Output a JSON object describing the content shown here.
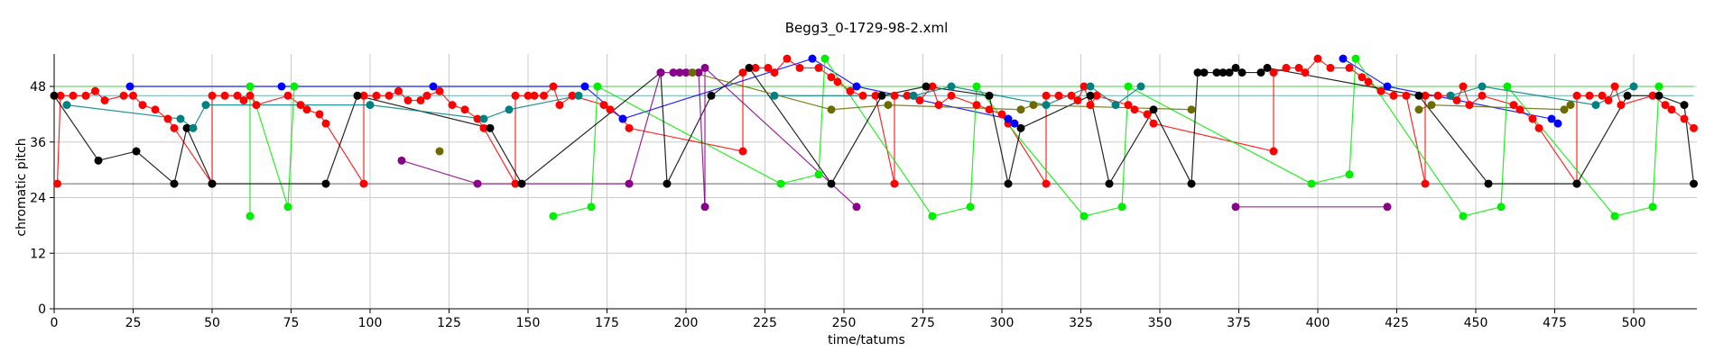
{
  "chart_data": {
    "type": "scatter",
    "title": "Begg3_0-1729-98-2.xml",
    "xlabel": "time/tatums",
    "ylabel": "chromatic pitch",
    "xlim": [
      0,
      520
    ],
    "ylim": [
      0,
      55
    ],
    "xticks": [
      0,
      25,
      50,
      75,
      100,
      125,
      150,
      175,
      200,
      225,
      250,
      275,
      300,
      325,
      350,
      375,
      400,
      425,
      450,
      475,
      500
    ],
    "yticks": [
      0,
      12,
      24,
      36,
      48
    ],
    "grid": true,
    "reference_lines": [
      {
        "name": "black",
        "color": "#000000",
        "y": 27,
        "x": [
          0,
          519
        ]
      },
      {
        "name": "green",
        "color": "#00cc00",
        "y": 48,
        "x": [
          0,
          519
        ]
      },
      {
        "name": "teal",
        "color": "#008080",
        "y": 46,
        "x": [
          0,
          519
        ]
      }
    ],
    "series": [
      {
        "color": "#ff0000",
        "points": [
          [
            1,
            27
          ],
          [
            2,
            46
          ],
          [
            6,
            46
          ],
          [
            10,
            46
          ],
          [
            13,
            47
          ],
          [
            16,
            45
          ],
          [
            22,
            46
          ],
          [
            25,
            46
          ],
          [
            28,
            44
          ],
          [
            32,
            43
          ],
          [
            36,
            41
          ],
          [
            38,
            39
          ],
          [
            50,
            27
          ],
          [
            50,
            46
          ],
          [
            54,
            46
          ],
          [
            58,
            46
          ],
          [
            60,
            45
          ],
          [
            62,
            46
          ],
          [
            64,
            44
          ],
          [
            74,
            46
          ],
          [
            78,
            44
          ],
          [
            80,
            43
          ],
          [
            84,
            42
          ],
          [
            86,
            40
          ],
          [
            98,
            27
          ],
          [
            98,
            46
          ],
          [
            102,
            46
          ],
          [
            106,
            46
          ],
          [
            109,
            47
          ],
          [
            112,
            45
          ],
          [
            116,
            45
          ],
          [
            118,
            46
          ],
          [
            122,
            47
          ],
          [
            126,
            44
          ],
          [
            130,
            43
          ],
          [
            134,
            41
          ],
          [
            136,
            39
          ],
          [
            146,
            27
          ],
          [
            146,
            46
          ],
          [
            150,
            46
          ],
          [
            152,
            46
          ],
          [
            155,
            46
          ],
          [
            158,
            48
          ],
          [
            160,
            44
          ],
          [
            164,
            46
          ],
          [
            174,
            44
          ],
          [
            176,
            43
          ],
          [
            180,
            41
          ],
          [
            182,
            39
          ],
          [
            218,
            34
          ],
          [
            218,
            51
          ],
          [
            222,
            52
          ],
          [
            226,
            52
          ],
          [
            228,
            51
          ],
          [
            232,
            54
          ],
          [
            236,
            52
          ],
          [
            242,
            52
          ],
          [
            246,
            50
          ],
          [
            248,
            49
          ],
          [
            252,
            47
          ],
          [
            256,
            46
          ],
          [
            260,
            46
          ],
          [
            266,
            27
          ],
          [
            266,
            46
          ],
          [
            270,
            46
          ],
          [
            272,
            46
          ],
          [
            274,
            45
          ],
          [
            278,
            48
          ],
          [
            280,
            44
          ],
          [
            284,
            46
          ],
          [
            292,
            44
          ],
          [
            296,
            43
          ],
          [
            300,
            42
          ],
          [
            302,
            40
          ],
          [
            314,
            27
          ],
          [
            314,
            46
          ],
          [
            318,
            46
          ],
          [
            322,
            46
          ],
          [
            324,
            45
          ],
          [
            326,
            48
          ],
          [
            328,
            44
          ],
          [
            330,
            46
          ],
          [
            340,
            44
          ],
          [
            342,
            43
          ],
          [
            346,
            42
          ],
          [
            348,
            40
          ],
          [
            386,
            34
          ],
          [
            386,
            51
          ],
          [
            390,
            52
          ],
          [
            394,
            52
          ],
          [
            396,
            51
          ],
          [
            400,
            54
          ],
          [
            404,
            52
          ],
          [
            410,
            52
          ],
          [
            414,
            50
          ],
          [
            416,
            49
          ],
          [
            420,
            47
          ],
          [
            424,
            46
          ],
          [
            428,
            46
          ],
          [
            434,
            27
          ],
          [
            434,
            46
          ],
          [
            438,
            46
          ],
          [
            442,
            46
          ],
          [
            444,
            45
          ],
          [
            446,
            48
          ],
          [
            448,
            44
          ],
          [
            452,
            46
          ],
          [
            462,
            44
          ],
          [
            464,
            43
          ],
          [
            468,
            41
          ],
          [
            470,
            39
          ],
          [
            482,
            27
          ],
          [
            482,
            46
          ],
          [
            486,
            46
          ],
          [
            490,
            46
          ],
          [
            492,
            45
          ],
          [
            494,
            48
          ],
          [
            496,
            44
          ],
          [
            506,
            46
          ],
          [
            510,
            44
          ],
          [
            512,
            43
          ],
          [
            516,
            41
          ],
          [
            519,
            39
          ]
        ]
      },
      {
        "color": "#0000ff",
        "points": [
          [
            24,
            48
          ],
          [
            72,
            48
          ],
          [
            120,
            48
          ],
          [
            168,
            48
          ],
          [
            180,
            41
          ],
          [
            240,
            54
          ],
          [
            254,
            48
          ],
          [
            302,
            41
          ],
          [
            304,
            40
          ],
          [
            408,
            54
          ],
          [
            422,
            48
          ],
          [
            474,
            41
          ],
          [
            476,
            40
          ]
        ]
      },
      {
        "color": "#00ee00",
        "points": [
          [
            62,
            20
          ],
          [
            62,
            48
          ],
          [
            74,
            22
          ],
          [
            76,
            48
          ],
          [
            158,
            20
          ],
          [
            170,
            22
          ],
          [
            172,
            48
          ],
          [
            230,
            27
          ],
          [
            242,
            29
          ],
          [
            244,
            54
          ],
          [
            278,
            20
          ],
          [
            290,
            22
          ],
          [
            292,
            48
          ],
          [
            326,
            20
          ],
          [
            338,
            22
          ],
          [
            340,
            48
          ],
          [
            398,
            27
          ],
          [
            410,
            29
          ],
          [
            412,
            54
          ],
          [
            446,
            20
          ],
          [
            458,
            22
          ],
          [
            460,
            48
          ],
          [
            494,
            20
          ],
          [
            506,
            22
          ],
          [
            508,
            48
          ]
        ]
      },
      {
        "color": "#000000",
        "points": [
          [
            0,
            46
          ],
          [
            14,
            32
          ],
          [
            26,
            34
          ],
          [
            38,
            27
          ],
          [
            42,
            39
          ],
          [
            50,
            27
          ],
          [
            86,
            27
          ],
          [
            96,
            46
          ],
          [
            138,
            39
          ],
          [
            148,
            27
          ],
          [
            192,
            51
          ],
          [
            194,
            27
          ],
          [
            208,
            46
          ],
          [
            220,
            52
          ],
          [
            246,
            27
          ],
          [
            262,
            46
          ],
          [
            276,
            48
          ],
          [
            296,
            46
          ],
          [
            302,
            27
          ],
          [
            306,
            39
          ],
          [
            328,
            46
          ],
          [
            334,
            27
          ],
          [
            348,
            43
          ],
          [
            360,
            27
          ],
          [
            362,
            51
          ],
          [
            364,
            51
          ],
          [
            368,
            51
          ],
          [
            370,
            51
          ],
          [
            372,
            51
          ],
          [
            374,
            52
          ],
          [
            376,
            51
          ],
          [
            382,
            51
          ],
          [
            384,
            52
          ],
          [
            432,
            46
          ],
          [
            454,
            27
          ],
          [
            482,
            27
          ],
          [
            498,
            46
          ],
          [
            508,
            46
          ],
          [
            516,
            44
          ],
          [
            519,
            27
          ]
        ]
      },
      {
        "color": "#008080",
        "points": [
          [
            4,
            44
          ],
          [
            40,
            41
          ],
          [
            44,
            39
          ],
          [
            48,
            44
          ],
          [
            100,
            44
          ],
          [
            136,
            41
          ],
          [
            144,
            43
          ],
          [
            166,
            46
          ],
          [
            228,
            46
          ],
          [
            272,
            46
          ],
          [
            284,
            48
          ],
          [
            314,
            44
          ],
          [
            336,
            44
          ],
          [
            328,
            48
          ],
          [
            344,
            48
          ],
          [
            442,
            46
          ],
          [
            452,
            48
          ],
          [
            488,
            44
          ],
          [
            500,
            48
          ]
        ]
      },
      {
        "color": "#8b008b",
        "points": [
          [
            110,
            32
          ],
          [
            134,
            27
          ],
          [
            182,
            27
          ],
          [
            192,
            51
          ],
          [
            196,
            51
          ],
          [
            198,
            51
          ],
          [
            200,
            51
          ],
          [
            204,
            51
          ],
          [
            206,
            22
          ],
          [
            206,
            52
          ],
          [
            254,
            22
          ],
          [
            374,
            22
          ],
          [
            422,
            22
          ]
        ]
      },
      {
        "color": "#6b6b00",
        "points": [
          [
            122,
            34
          ],
          [
            202,
            51
          ],
          [
            246,
            43
          ],
          [
            264,
            44
          ],
          [
            306,
            43
          ],
          [
            310,
            44
          ],
          [
            360,
            43
          ],
          [
            432,
            43
          ],
          [
            436,
            44
          ],
          [
            478,
            43
          ],
          [
            480,
            44
          ]
        ]
      }
    ]
  }
}
